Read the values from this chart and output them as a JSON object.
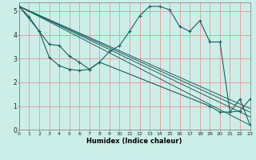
{
  "xlabel": "Humidex (Indice chaleur)",
  "bg_color": "#cceee8",
  "grid_color": "#e8a0a0",
  "line_color": "#1a6060",
  "xlim": [
    0,
    23
  ],
  "ylim": [
    0,
    5.35
  ],
  "xticks": [
    0,
    1,
    2,
    3,
    4,
    5,
    6,
    7,
    8,
    9,
    10,
    11,
    12,
    13,
    14,
    15,
    16,
    17,
    18,
    19,
    20,
    21,
    22,
    23
  ],
  "yticks": [
    0,
    1,
    2,
    3,
    4,
    5
  ],
  "main_line": {
    "x": [
      0,
      1,
      2,
      3,
      4,
      5,
      6,
      7,
      8,
      9,
      10,
      11,
      12,
      13,
      14,
      15,
      16,
      17,
      18,
      19,
      20,
      21,
      22,
      23
    ],
    "y": [
      5.2,
      4.75,
      4.15,
      3.05,
      2.7,
      2.55,
      2.5,
      2.55,
      2.85,
      3.3,
      3.55,
      4.15,
      4.8,
      5.2,
      5.2,
      5.05,
      4.35,
      4.15,
      4.6,
      3.7,
      3.7,
      0.75,
      0.8,
      1.3
    ]
  },
  "curve2": {
    "x": [
      0,
      2,
      3,
      4,
      5,
      6,
      7,
      8,
      19,
      20,
      21,
      22,
      23
    ],
    "y": [
      5.2,
      4.15,
      3.6,
      3.55,
      3.1,
      2.85,
      2.55,
      2.85,
      1.0,
      0.75,
      0.75,
      1.3,
      0.2
    ]
  },
  "straight_lines": [
    {
      "x": [
        0,
        23
      ],
      "y": [
        5.2,
        0.9
      ]
    },
    {
      "x": [
        0,
        23
      ],
      "y": [
        5.2,
        0.75
      ]
    },
    {
      "x": [
        0,
        23
      ],
      "y": [
        5.2,
        0.55
      ]
    },
    {
      "x": [
        0,
        23
      ],
      "y": [
        5.2,
        0.2
      ]
    }
  ]
}
